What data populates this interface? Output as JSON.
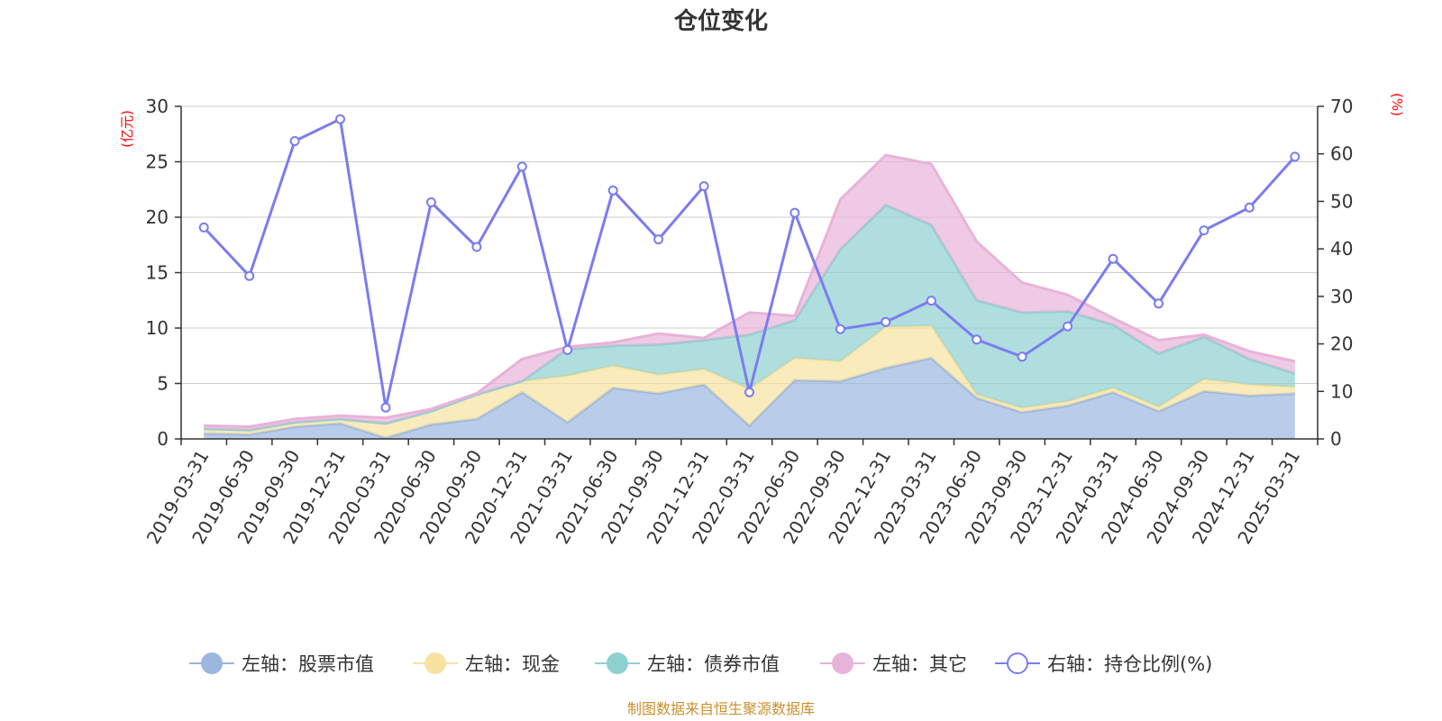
{
  "chart_data": {
    "type": "area",
    "title": "仓位变化",
    "left_axis": {
      "unit_label": "(亿元)",
      "range": [
        0,
        30
      ],
      "ticks": [
        "0",
        "5",
        "10",
        "15",
        "20",
        "25",
        "30"
      ]
    },
    "right_axis": {
      "unit_label": "(%)",
      "range": [
        0,
        70
      ],
      "ticks": [
        "0",
        "10",
        "20",
        "30",
        "40",
        "50",
        "60",
        "70"
      ]
    },
    "categories": [
      "2019-03-31",
      "2019-06-30",
      "2019-09-30",
      "2019-12-31",
      "2020-03-31",
      "2020-06-30",
      "2020-09-30",
      "2020-12-31",
      "2021-03-31",
      "2021-06-30",
      "2021-09-30",
      "2021-12-31",
      "2022-03-31",
      "2022-06-30",
      "2022-09-30",
      "2022-12-31",
      "2023-03-31",
      "2023-06-30",
      "2023-09-30",
      "2023-12-31",
      "2024-03-31",
      "2024-06-30",
      "2024-09-30",
      "2024-12-31",
      "2025-03-31"
    ],
    "stacked": true,
    "grid": "horizontal",
    "legend_position": "bottom-center",
    "series": [
      {
        "name": "左轴：股票市值",
        "axis": "left",
        "color": "#9bb6df",
        "values": [
          0.5,
          0.4,
          1.1,
          1.4,
          0.1,
          1.3,
          1.8,
          4.2,
          1.5,
          4.6,
          4.1,
          4.9,
          1.2,
          5.3,
          5.2,
          6.4,
          7.3,
          3.7,
          2.4,
          3.0,
          4.2,
          2.5,
          4.3,
          3.9,
          4.1
        ]
      },
      {
        "name": "左轴：现金",
        "axis": "left",
        "color": "#f7e3a0",
        "values": [
          0.4,
          0.4,
          0.4,
          0.4,
          1.3,
          1.2,
          2.2,
          1.0,
          4.2,
          2.0,
          1.7,
          1.4,
          3.3,
          2.0,
          1.8,
          3.7,
          2.9,
          0.3,
          0.4,
          0.4,
          0.4,
          0.4,
          1.1,
          1.0,
          0.6
        ]
      },
      {
        "name": "左轴：债券市值",
        "axis": "left",
        "color": "#8fd0d1",
        "values": [
          0.0,
          0.0,
          0.0,
          0.0,
          0.0,
          0.0,
          0.0,
          0.0,
          2.4,
          1.8,
          2.7,
          2.6,
          4.9,
          3.4,
          10.1,
          11.0,
          9.1,
          8.5,
          8.6,
          8.1,
          5.7,
          4.8,
          3.8,
          2.3,
          1.2
        ]
      },
      {
        "name": "左轴：其它",
        "axis": "left",
        "color": "#e8b3d8",
        "values": [
          0.3,
          0.3,
          0.3,
          0.3,
          0.5,
          0.2,
          0.1,
          2.0,
          0.2,
          0.3,
          1.0,
          0.2,
          2.0,
          0.4,
          4.5,
          4.5,
          5.5,
          5.3,
          2.7,
          1.5,
          0.6,
          1.2,
          0.2,
          0.7,
          1.1
        ]
      },
      {
        "name": "右轴：持仓比例(%)",
        "axis": "right",
        "type": "line",
        "color": "#7b7cf0",
        "values": [
          44.5,
          34.3,
          62.7,
          67.3,
          6.6,
          49.8,
          40.4,
          57.3,
          18.7,
          52.3,
          42.0,
          53.2,
          9.8,
          47.6,
          23.1,
          24.6,
          29.1,
          20.9,
          17.3,
          23.7,
          37.9,
          28.5,
          43.9,
          48.7,
          59.4
        ]
      }
    ],
    "source_note": "制图数据来自恒生聚源数据库",
    "unit_color": "#ff0000",
    "source_color": "#c8912e",
    "grid_color": "#cccccc",
    "axis_color": "#333333"
  }
}
